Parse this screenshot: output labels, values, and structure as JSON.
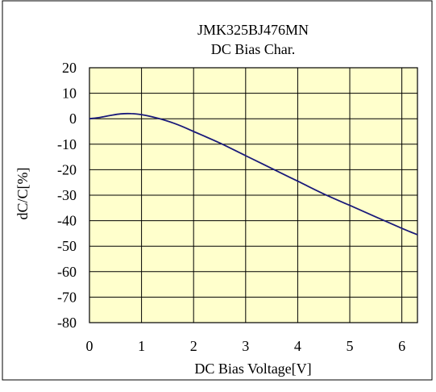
{
  "chart_data": {
    "type": "line",
    "title": "JMK325BJ476MN",
    "subtitle": "DC Bias Char.",
    "xlabel": "DC Bias Voltage[V]",
    "ylabel": "dC/C[%]",
    "xlim": [
      0,
      6.3
    ],
    "ylim": [
      -80,
      20
    ],
    "xticks": [
      0,
      1,
      2,
      3,
      4,
      5,
      6
    ],
    "yticks": [
      20,
      10,
      0,
      -10,
      -20,
      -30,
      -40,
      -50,
      -60,
      -70,
      -80
    ],
    "grid": true,
    "plot_background": "#FFFFCC",
    "line_color": "#1A1A7A",
    "series": [
      {
        "x": [
          0,
          0.2,
          0.4,
          0.6,
          0.8,
          1.0,
          1.2,
          1.4,
          1.6,
          1.8,
          2.0,
          2.5,
          3.0,
          3.5,
          4.0,
          4.5,
          5.0,
          5.5,
          6.0,
          6.3
        ],
        "values": [
          0,
          0.5,
          1.3,
          1.9,
          2.0,
          1.6,
          0.8,
          -0.3,
          -1.6,
          -3.2,
          -5.0,
          -9.5,
          -14.5,
          -19.5,
          -24.5,
          -29.5,
          -34.0,
          -38.5,
          -43.0,
          -45.5
        ]
      }
    ]
  }
}
